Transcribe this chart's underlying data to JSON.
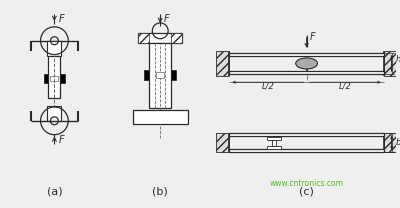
{
  "bg_color": "#efefef",
  "line_color": "#2a2a2a",
  "website_color": "#55bb22",
  "website_text": "www.cntronics.com",
  "label_a": "(a)",
  "label_b": "(b)",
  "label_c": "(c)",
  "figsize": [
    4.0,
    2.08
  ],
  "dpi": 100
}
